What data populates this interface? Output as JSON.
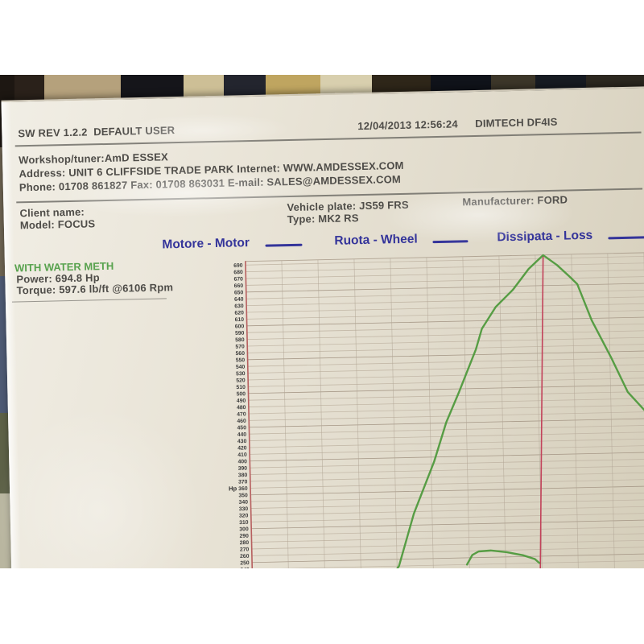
{
  "colors": {
    "legend_blue": "#34349a",
    "curve_green": "#4f9a3d",
    "marker_red": "#c2425a",
    "axis_red": "#b75f5f",
    "print_gray": "#4e4c48",
    "info_green": "#58a24e"
  },
  "printout": {
    "header": {
      "sw_rev": "SW REV 1.2.2  DEFAULT USER",
      "datetime": "12/04/2013 12:56:24",
      "app_name": "DIMTECH DF4IS"
    },
    "workshop": {
      "line1": "Workshop/tuner:AmD ESSEX",
      "line2": "Address: UNIT 6 CLIFFSIDE TRADE PARK Internet: WWW.AMDESSEX.COM",
      "line3": "Phone: 01708 861827 Fax: 01708 863031 E-mail: SALES@AMDESSEX.COM"
    },
    "vehicle": {
      "client_label": "Client name:",
      "model": "Model: FOCUS",
      "plate": "Vehicle plate: JS59 FRS",
      "type": "Type: MK2 RS",
      "manufacturer": "Manufacturer: FORD"
    },
    "run_info": {
      "title": "WITH WATER METH",
      "power": "Power: 694.8 Hp",
      "torque": "Torque: 597.6 lb/ft @6106 Rpm"
    }
  },
  "legend": {
    "items": [
      {
        "label": "Motore - Motor"
      },
      {
        "label": "Ruota - Wheel"
      },
      {
        "label": "Dissipata - Loss"
      }
    ]
  },
  "chart_data": {
    "type": "line",
    "title": "",
    "xlabel": "",
    "ylabel": "Hp",
    "y_axis": {
      "min": 240,
      "max": 690,
      "step": 10,
      "unit_label": "Hp",
      "unit_label_at": 360
    },
    "x_axis": {
      "tick_labels_visible": false
    },
    "grid": true,
    "legend_position": "above chart",
    "peak_marker": {
      "x_frac": 0.744,
      "color": "#c2425a"
    },
    "series": [
      {
        "name": "Motore - Motor",
        "color": "#4f9a3d",
        "points": [
          [
            0.355,
            230
          ],
          [
            0.367,
            240
          ],
          [
            0.407,
            317
          ],
          [
            0.461,
            394
          ],
          [
            0.493,
            451
          ],
          [
            0.527,
            496
          ],
          [
            0.571,
            558
          ],
          [
            0.587,
            588
          ],
          [
            0.623,
            620
          ],
          [
            0.667,
            645
          ],
          [
            0.707,
            675
          ],
          [
            0.744,
            695
          ],
          [
            0.778,
            680
          ],
          [
            0.808,
            663
          ],
          [
            0.828,
            651
          ],
          [
            0.862,
            597
          ],
          [
            0.908,
            542
          ],
          [
            0.948,
            490
          ],
          [
            1.0,
            455
          ]
        ]
      },
      {
        "name": "Dissipata - Loss",
        "color": "#4f9a3d",
        "points": [
          [
            0.537,
            240
          ],
          [
            0.551,
            254
          ],
          [
            0.567,
            259
          ],
          [
            0.597,
            260
          ],
          [
            0.637,
            257
          ],
          [
            0.677,
            252
          ],
          [
            0.707,
            246
          ],
          [
            0.718,
            240
          ]
        ]
      }
    ]
  }
}
